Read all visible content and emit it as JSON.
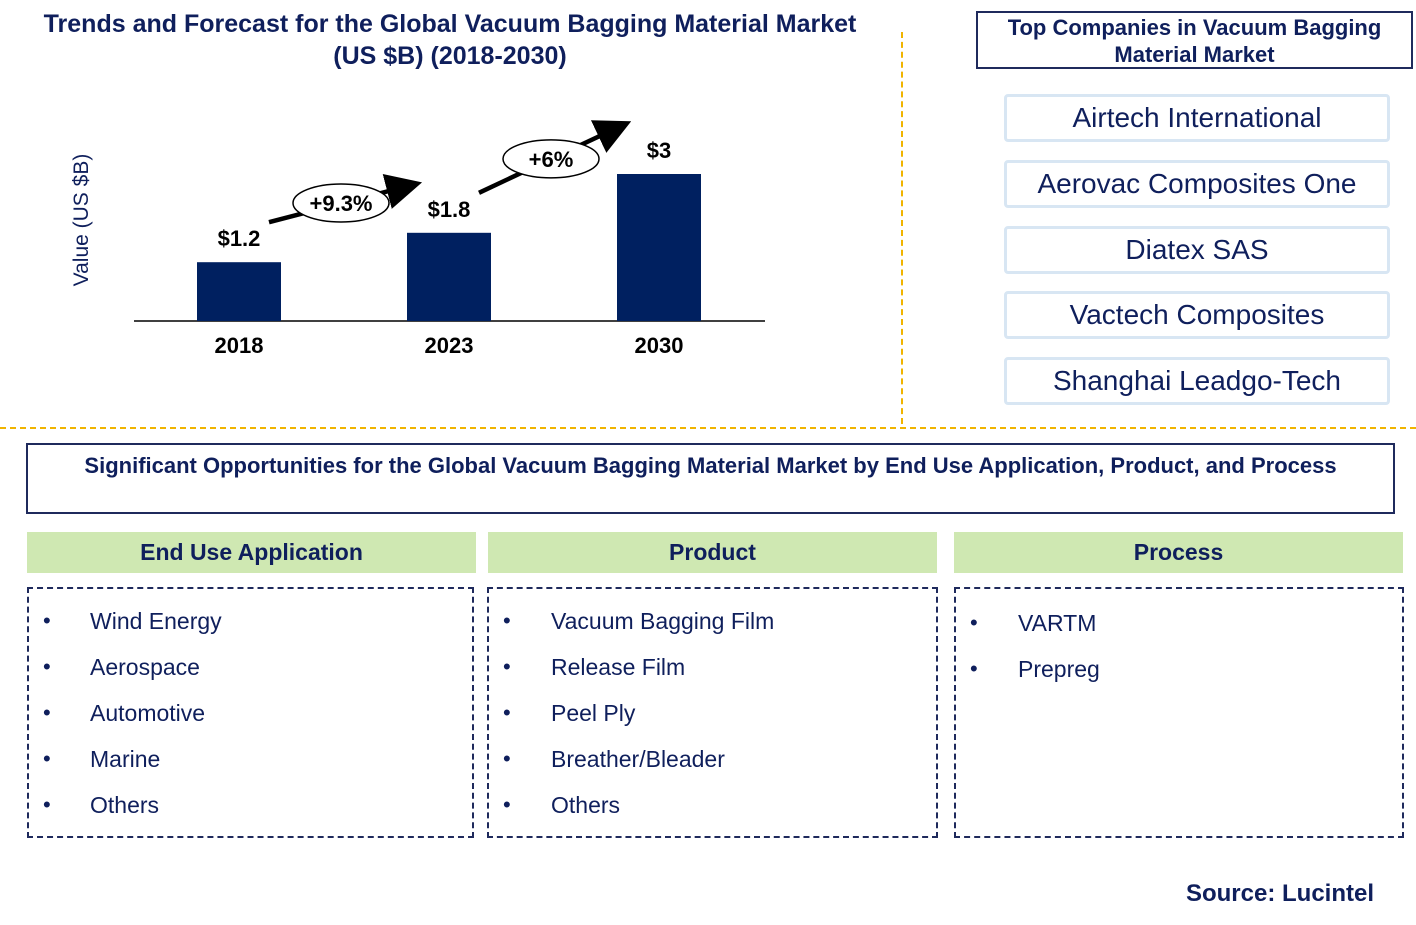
{
  "chart_title": "Trends and Forecast for the Global Vacuum Bagging Material Market  (US $B) (2018-2030)",
  "chart_data": {
    "type": "bar",
    "categories": [
      "2018",
      "2023",
      "2030"
    ],
    "values": [
      1.2,
      1.8,
      3.0
    ],
    "value_labels": [
      "$1.2",
      "$1.8",
      "$3"
    ],
    "cagr_labels": [
      "+9.3%",
      "+6%"
    ],
    "ylabel": "Value (US $B)",
    "xlabel": "",
    "bar_color": "#002060",
    "grid": false
  },
  "companies": {
    "title": "Top Companies in Vacuum Bagging Material Market",
    "items": [
      "Airtech International",
      "Aerovac Composites One",
      "Diatex SAS",
      "Vactech Composites",
      "Shanghai Leadgo-Tech"
    ]
  },
  "opportunities": {
    "title": "Significant Opportunities for the Global Vacuum Bagging Material Market by End Use Application, Product, and Process",
    "categories": [
      {
        "header": "End Use Application",
        "items": [
          "Wind Energy",
          "Aerospace",
          "Automotive",
          "Marine",
          "Others"
        ]
      },
      {
        "header": "Product",
        "items": [
          "Vacuum Bagging Film",
          "Release Film",
          "Peel Ply",
          "Breather/Bleader",
          "Others"
        ]
      },
      {
        "header": "Process",
        "items": [
          "VARTM",
          "Prepreg"
        ]
      }
    ]
  },
  "source": "Source: Lucintel",
  "colors": {
    "title": "#0f1f5c",
    "bar": "#002060",
    "separator": "#f0b400",
    "header_bg": "#cfe8b2"
  }
}
